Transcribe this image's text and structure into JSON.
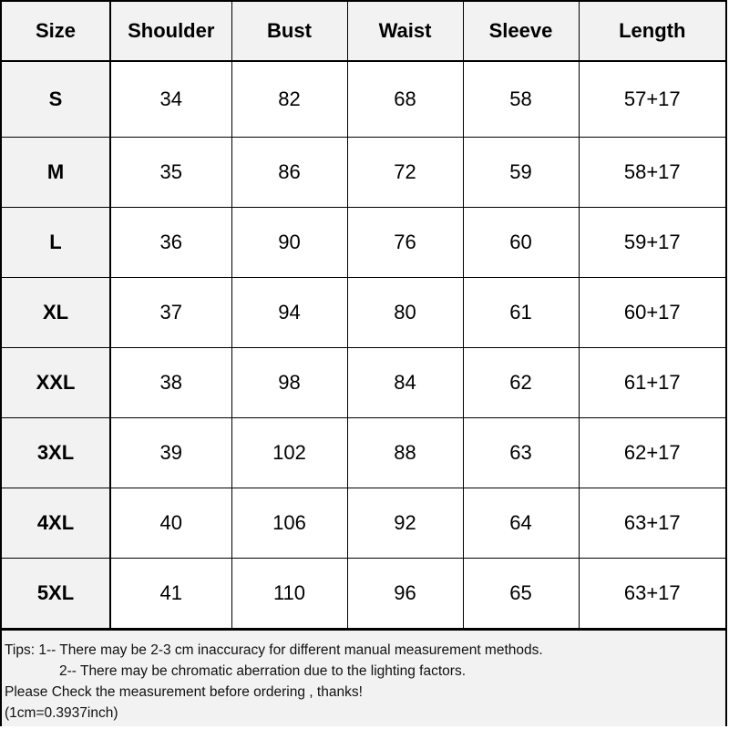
{
  "headers": [
    "Size",
    "Shoulder",
    "Bust",
    "Waist",
    "Sleeve",
    "Length"
  ],
  "rows": [
    [
      "S",
      "34",
      "82",
      "68",
      "58",
      "57+17"
    ],
    [
      "M",
      "35",
      "86",
      "72",
      "59",
      "58+17"
    ],
    [
      "L",
      "36",
      "90",
      "76",
      "60",
      "59+17"
    ],
    [
      "XL",
      "37",
      "94",
      "80",
      "61",
      "60+17"
    ],
    [
      "XXL",
      "38",
      "98",
      "84",
      "62",
      "61+17"
    ],
    [
      "3XL",
      "39",
      "102",
      "88",
      "63",
      "62+17"
    ],
    [
      "4XL",
      "40",
      "106",
      "92",
      "64",
      "63+17"
    ],
    [
      "5XL",
      "41",
      "110",
      "96",
      "65",
      "63+17"
    ]
  ],
  "tips": {
    "line1": "Tips: 1-- There may be 2-3 cm inaccuracy for different manual measurement methods.",
    "line2": "2-- There may be chromatic aberration due to the lighting factors.",
    "line3": "Please Check the measurement before ordering , thanks!",
    "line4": "(1cm=0.3937inch)"
  },
  "colors": {
    "header_bg": "#f2f2f2",
    "border": "#000000"
  }
}
